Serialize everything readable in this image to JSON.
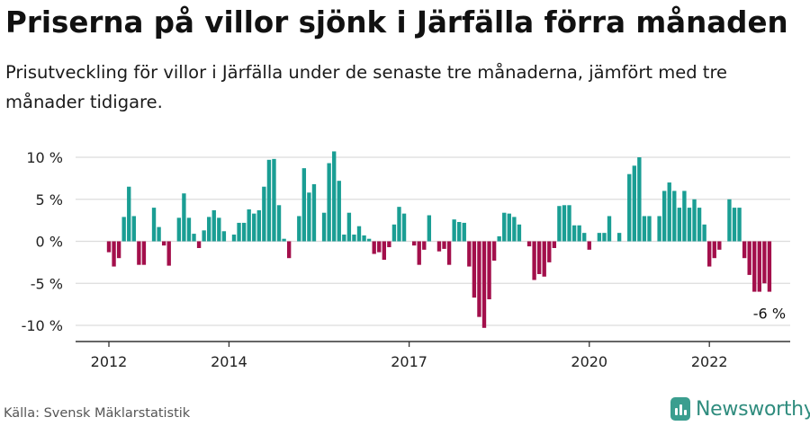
{
  "header": {
    "title": "Priserna på villor sjönk i Järfälla förra månaden",
    "subtitle": "Prisutveckling för villor i Järfälla under de senaste tre månaderna, jämfört med tre månader tidigare."
  },
  "footer": {
    "source": "Källa: Svensk Mäklarstatistik",
    "brand": "Newsworthy",
    "brand_icon": "bar-chart-logo-icon"
  },
  "colors": {
    "positive": "#1a9e94",
    "negative": "#a30f4b",
    "grid": "#dcdcdc",
    "axis": "#333333",
    "brand": "#3b9e8f"
  },
  "chart_data": {
    "type": "bar",
    "title": "Priserna på villor sjönk i Järfälla förra månaden",
    "xlabel": "",
    "ylabel": "",
    "ylim": [
      -11,
      11
    ],
    "yticks": [
      {
        "value": 10,
        "label": "10 %"
      },
      {
        "value": 5,
        "label": "5 %"
      },
      {
        "value": 0,
        "label": "0 %"
      },
      {
        "value": -5,
        "label": "-5 %"
      },
      {
        "value": -10,
        "label": "-10 %"
      }
    ],
    "xticks": [
      {
        "year": 2012,
        "label": "2012"
      },
      {
        "year": 2014,
        "label": "2014"
      },
      {
        "year": 2017,
        "label": "2017"
      },
      {
        "year": 2020,
        "label": "2020"
      },
      {
        "year": 2022,
        "label": "2022"
      }
    ],
    "start": "2012-01",
    "grid": true,
    "legend": "none",
    "annotation": {
      "text": "-6 %",
      "index": 132
    },
    "values": [
      -1.3,
      -3.0,
      -2.0,
      2.9,
      6.5,
      3.0,
      -2.8,
      -2.8,
      0.0,
      4.0,
      1.7,
      -0.5,
      -2.9,
      0.0,
      2.8,
      5.7,
      2.8,
      0.9,
      -0.8,
      1.3,
      2.9,
      3.7,
      2.8,
      1.2,
      0.0,
      0.8,
      2.2,
      2.2,
      3.8,
      3.3,
      3.7,
      6.5,
      9.7,
      9.8,
      4.3,
      0.3,
      -2.0,
      0.0,
      3.0,
      8.7,
      5.8,
      6.8,
      0.0,
      3.4,
      9.3,
      10.7,
      7.2,
      0.8,
      3.4,
      0.8,
      1.8,
      0.7,
      0.3,
      -1.5,
      -1.3,
      -2.2,
      -0.7,
      2.0,
      4.1,
      3.3,
      0.0,
      -0.5,
      -2.8,
      -1.0,
      3.1,
      0.0,
      -1.2,
      -0.9,
      -2.8,
      2.6,
      2.3,
      2.2,
      -3.0,
      -6.7,
      -9.0,
      -10.3,
      -6.9,
      -2.3,
      0.6,
      3.4,
      3.3,
      2.9,
      2.0,
      0.0,
      -0.6,
      -4.6,
      -3.9,
      -4.2,
      -2.5,
      -0.8,
      4.2,
      4.3,
      4.3,
      1.9,
      1.9,
      1.0,
      -1.0,
      0.0,
      1.0,
      1.0,
      3.0,
      0.0,
      1.0,
      0.0,
      8.0,
      9.0,
      10.0,
      3.0,
      3.0,
      0.0,
      3.0,
      6.0,
      7.0,
      6.0,
      4.0,
      6.0,
      4.0,
      5.0,
      4.0,
      2.0,
      -3.0,
      -2.0,
      -1.0,
      0.0,
      5.0,
      4.0,
      4.0,
      -2.0,
      -4.0,
      -6.0,
      -6.0,
      -5.0,
      -6.0
    ]
  }
}
